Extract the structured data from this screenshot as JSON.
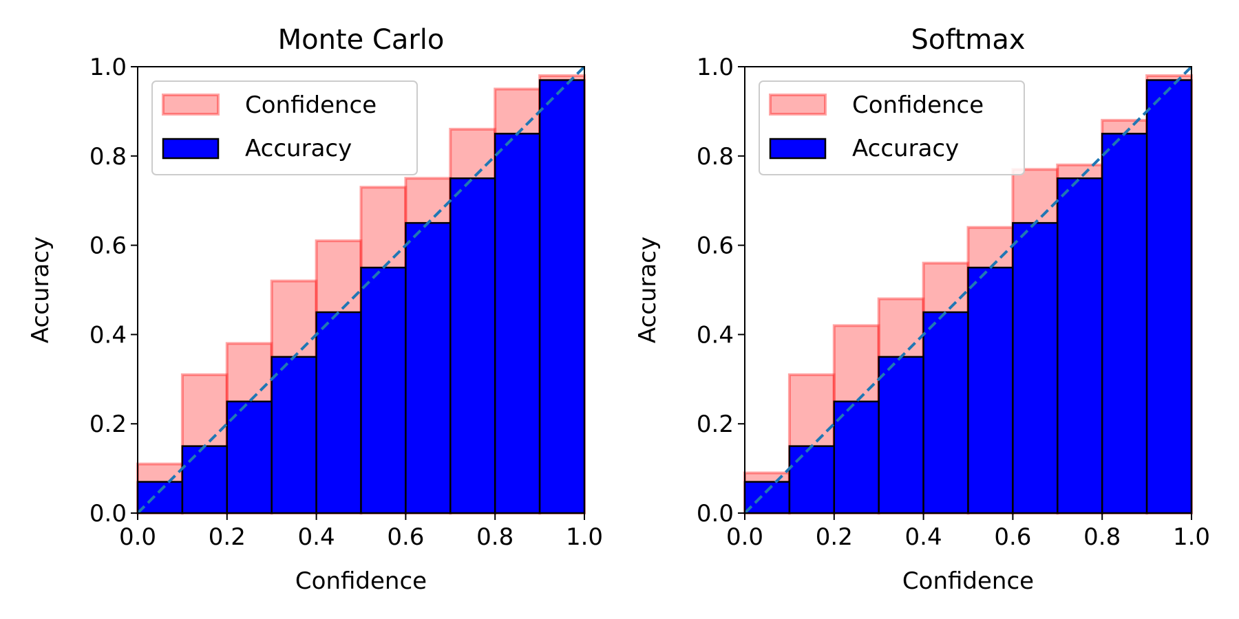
{
  "chart_data": [
    {
      "type": "bar",
      "title": "Monte Carlo",
      "xlabel": "Confidence",
      "ylabel": "Accuracy",
      "xlim": [
        0.0,
        1.0
      ],
      "ylim": [
        0.0,
        1.0
      ],
      "xticks": [
        "0.0",
        "0.2",
        "0.4",
        "0.6",
        "0.8",
        "1.0"
      ],
      "yticks": [
        "0.0",
        "0.2",
        "0.4",
        "0.6",
        "0.8",
        "1.0"
      ],
      "bin_edges": [
        0.0,
        0.1,
        0.2,
        0.3,
        0.4,
        0.5,
        0.6,
        0.7,
        0.8,
        0.9,
        1.0
      ],
      "legend": {
        "position": "upper-left",
        "entries": [
          "Confidence",
          "Accuracy"
        ]
      },
      "series": [
        {
          "name": "Confidence",
          "color": "#ff7f7f",
          "values": [
            0.11,
            0.31,
            0.38,
            0.52,
            0.61,
            0.73,
            0.75,
            0.86,
            0.95,
            0.98
          ]
        },
        {
          "name": "Accuracy",
          "color": "#0000ff",
          "values": [
            0.07,
            0.15,
            0.25,
            0.35,
            0.45,
            0.55,
            0.65,
            0.75,
            0.85,
            0.97
          ]
        }
      ],
      "diagonal": {
        "color": "#1f77b4",
        "style": "dashed"
      }
    },
    {
      "type": "bar",
      "title": "Softmax",
      "xlabel": "Confidence",
      "ylabel": "Accuracy",
      "xlim": [
        0.0,
        1.0
      ],
      "ylim": [
        0.0,
        1.0
      ],
      "xticks": [
        "0.0",
        "0.2",
        "0.4",
        "0.6",
        "0.8",
        "1.0"
      ],
      "yticks": [
        "0.0",
        "0.2",
        "0.4",
        "0.6",
        "0.8",
        "1.0"
      ],
      "bin_edges": [
        0.0,
        0.1,
        0.2,
        0.3,
        0.4,
        0.5,
        0.6,
        0.7,
        0.8,
        0.9,
        1.0
      ],
      "legend": {
        "position": "upper-left",
        "entries": [
          "Confidence",
          "Accuracy"
        ]
      },
      "series": [
        {
          "name": "Confidence",
          "color": "#ff7f7f",
          "values": [
            0.09,
            0.31,
            0.42,
            0.48,
            0.56,
            0.64,
            0.77,
            0.78,
            0.88,
            0.98
          ]
        },
        {
          "name": "Accuracy",
          "color": "#0000ff",
          "values": [
            0.07,
            0.15,
            0.25,
            0.35,
            0.45,
            0.55,
            0.65,
            0.75,
            0.85,
            0.97
          ]
        }
      ],
      "diagonal": {
        "color": "#1f77b4",
        "style": "dashed"
      }
    }
  ]
}
